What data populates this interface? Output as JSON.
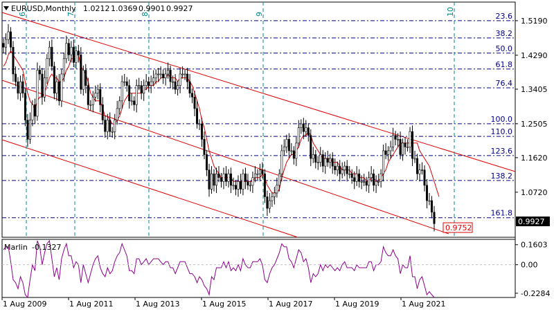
{
  "chart_data": {
    "type": "candlestick",
    "symbol": "EURUSD,Monthly",
    "ohlc_display": [
      "1.0212",
      "1.0369",
      "0.9901",
      "0.9927"
    ],
    "price_scale": {
      "ticks": [
        "1.5190",
        "1.4290",
        "1.3405",
        "1.2505",
        "1.1620",
        "1.0720"
      ],
      "values": [
        1.519,
        1.429,
        1.3405,
        1.2505,
        1.162,
        1.072
      ],
      "ylim": [
        0.9545,
        1.5675
      ]
    },
    "current_price": {
      "label": "0.9927",
      "value": 0.9927
    },
    "target_label": {
      "label": "0.9752",
      "value": 0.9752
    },
    "time_axis": [
      "1 Aug 2009",
      "1 Aug 2011",
      "1 Aug 2013",
      "1 Aug 2015",
      "1 Aug 2017",
      "1 Aug 2019",
      "1 Aug 2021"
    ],
    "fib_levels": [
      {
        "label": "23.6",
        "value": 1.519
      },
      {
        "label": "38.2",
        "value": 1.474
      },
      {
        "label": "50.0",
        "value": 1.4345
      },
      {
        "label": "61.8",
        "value": 1.393
      },
      {
        "label": "76.4",
        "value": 1.344
      },
      {
        "label": "100.0",
        "value": 1.2505
      },
      {
        "label": "110.0",
        "value": 1.2175
      },
      {
        "label": "123.6",
        "value": 1.1675
      },
      {
        "label": "138.2",
        "value": 1.1025
      },
      {
        "label": "161.8",
        "value": 1.0055
      }
    ],
    "wave_labels": [
      "6",
      "7",
      "8",
      "9",
      "10"
    ],
    "price_series": {
      "close": [
        1.45,
        1.47,
        1.49,
        1.45,
        1.38,
        1.36,
        1.33,
        1.36,
        1.33,
        1.26,
        1.21,
        1.26,
        1.3,
        1.27,
        1.39,
        1.38,
        1.32,
        1.37,
        1.42,
        1.45,
        1.4,
        1.33,
        1.36,
        1.31,
        1.38,
        1.42,
        1.46,
        1.43,
        1.45,
        1.41,
        1.44,
        1.43,
        1.34,
        1.39,
        1.35,
        1.3,
        1.3,
        1.32,
        1.33,
        1.34,
        1.3,
        1.26,
        1.23,
        1.26,
        1.23,
        1.23,
        1.26,
        1.29,
        1.31,
        1.36,
        1.36,
        1.35,
        1.31,
        1.31,
        1.3,
        1.35,
        1.35,
        1.33,
        1.35,
        1.36,
        1.35,
        1.36,
        1.37,
        1.38,
        1.38,
        1.38,
        1.37,
        1.38,
        1.39,
        1.36,
        1.36,
        1.34,
        1.35,
        1.38,
        1.38,
        1.38,
        1.36,
        1.33,
        1.32,
        1.29,
        1.25,
        1.25,
        1.21,
        1.17,
        1.13,
        1.08,
        1.12,
        1.09,
        1.12,
        1.11,
        1.1,
        1.12,
        1.1,
        1.12,
        1.09,
        1.09,
        1.08,
        1.1,
        1.08,
        1.12,
        1.1,
        1.09,
        1.09,
        1.11,
        1.12,
        1.12,
        1.13,
        1.12,
        1.06,
        1.03,
        1.05,
        1.06,
        1.07,
        1.09,
        1.12,
        1.18,
        1.19,
        1.21,
        1.18,
        1.18,
        1.16,
        1.2,
        1.24,
        1.25,
        1.23,
        1.24,
        1.22,
        1.16,
        1.17,
        1.15,
        1.15,
        1.17,
        1.14,
        1.16,
        1.15,
        1.16,
        1.14,
        1.13,
        1.14,
        1.12,
        1.13,
        1.14,
        1.12,
        1.12,
        1.11,
        1.1,
        1.12,
        1.1,
        1.1,
        1.1,
        1.09,
        1.11,
        1.12,
        1.09,
        1.1,
        1.1,
        1.12,
        1.18,
        1.17,
        1.18,
        1.19,
        1.22,
        1.21,
        1.21,
        1.17,
        1.2,
        1.19,
        1.19,
        1.23,
        1.16,
        1.16,
        1.12,
        1.13,
        1.13,
        1.09,
        1.05,
        1.05,
        1.02,
        0.99
      ]
    },
    "ma_series": [
      1.4,
      1.41,
      1.43,
      1.44,
      1.43,
      1.42,
      1.41,
      1.4,
      1.39,
      1.36,
      1.33,
      1.31,
      1.3,
      1.29,
      1.31,
      1.32,
      1.32,
      1.33,
      1.35,
      1.37,
      1.38,
      1.37,
      1.37,
      1.36,
      1.36,
      1.37,
      1.39,
      1.4,
      1.42,
      1.42,
      1.43,
      1.43,
      1.4,
      1.39,
      1.38,
      1.36,
      1.33,
      1.32,
      1.31,
      1.31,
      1.31,
      1.29,
      1.27,
      1.27,
      1.26,
      1.25,
      1.25,
      1.26,
      1.27,
      1.29,
      1.31,
      1.32,
      1.33,
      1.33,
      1.33,
      1.33,
      1.33,
      1.33,
      1.34,
      1.34,
      1.35,
      1.35,
      1.35,
      1.36,
      1.36,
      1.37,
      1.37,
      1.37,
      1.38,
      1.37,
      1.37,
      1.37,
      1.36,
      1.37,
      1.37,
      1.37,
      1.37,
      1.36,
      1.35,
      1.33,
      1.31,
      1.29,
      1.26,
      1.24,
      1.21,
      1.18,
      1.16,
      1.14,
      1.13,
      1.12,
      1.11,
      1.11,
      1.11,
      1.11,
      1.11,
      1.1,
      1.1,
      1.1,
      1.1,
      1.1,
      1.1,
      1.1,
      1.1,
      1.1,
      1.11,
      1.11,
      1.11,
      1.12,
      1.11,
      1.09,
      1.08,
      1.07,
      1.07,
      1.07,
      1.08,
      1.11,
      1.13,
      1.15,
      1.16,
      1.17,
      1.17,
      1.18,
      1.19,
      1.21,
      1.22,
      1.22,
      1.23,
      1.22,
      1.2,
      1.19,
      1.18,
      1.17,
      1.16,
      1.16,
      1.16,
      1.16,
      1.15,
      1.15,
      1.15,
      1.14,
      1.13,
      1.13,
      1.13,
      1.13,
      1.12,
      1.12,
      1.12,
      1.11,
      1.11,
      1.11,
      1.1,
      1.1,
      1.11,
      1.11,
      1.1,
      1.1,
      1.11,
      1.12,
      1.13,
      1.15,
      1.16,
      1.17,
      1.18,
      1.19,
      1.2,
      1.2,
      1.2,
      1.2,
      1.2,
      1.2,
      1.2,
      1.2,
      1.18,
      1.17,
      1.16,
      1.15,
      1.14,
      1.12,
      1.1,
      1.08,
      1.06
    ],
    "indicator": {
      "name": "Marlin",
      "value_label": "-0.1327",
      "ticks": [
        "0.1603",
        "0.00",
        "-0.2284"
      ],
      "tick_values": [
        0.1603,
        0.0,
        -0.2284
      ],
      "ylim": [
        -0.2624,
        0.2031
      ]
    }
  }
}
